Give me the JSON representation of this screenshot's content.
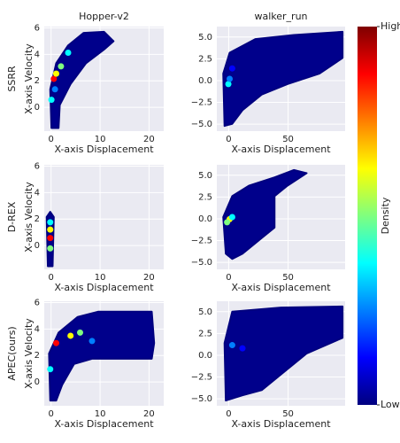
{
  "chart_data": [
    {
      "type": "hexbin",
      "title": "Hopper-v2",
      "row_label": "SSRR",
      "xlabel": "X-axis Displacement",
      "ylabel": "X-axis Velocity",
      "xlim": [
        -1.4,
        23
      ],
      "ylim": [
        -1.8,
        6.1
      ],
      "xticks": [
        0,
        10,
        20
      ],
      "yticks": [
        0,
        2,
        4,
        6
      ]
    },
    {
      "type": "hexbin",
      "title": "walker_run",
      "xlabel": "X-axis Displacement",
      "xlim": [
        -10,
        98
      ],
      "ylim": [
        -5.8,
        6.2
      ],
      "xticks": [
        0,
        50
      ],
      "yticks": [
        {
          "value": -5,
          "label": "−5.0"
        },
        {
          "value": -2.5,
          "label": "−2.5"
        },
        {
          "value": 0,
          "label": "0.0"
        },
        {
          "value": 2.5,
          "label": "2.5"
        },
        {
          "value": 5,
          "label": "5.0"
        }
      ]
    },
    {
      "type": "hexbin",
      "row_label": "D-REX",
      "xlabel": "X-axis Displacement",
      "ylabel": "X-axis Velocity",
      "xlim": [
        -1.4,
        23
      ],
      "ylim": [
        -1.8,
        6.1
      ],
      "xticks": [
        0,
        10,
        20
      ],
      "yticks": [
        0,
        2,
        4,
        6
      ]
    },
    {
      "type": "hexbin",
      "xlabel": "X-axis Displacement",
      "xlim": [
        -10,
        98
      ],
      "ylim": [
        -5.8,
        6.2
      ],
      "xticks": [
        0,
        50
      ],
      "yticks": [
        {
          "value": -5,
          "label": "−5.0"
        },
        {
          "value": -2.5,
          "label": "−2.5"
        },
        {
          "value": 0,
          "label": "0.0"
        },
        {
          "value": 2.5,
          "label": "2.5"
        },
        {
          "value": 5,
          "label": "5.0"
        }
      ]
    },
    {
      "type": "hexbin",
      "row_label": "APEC(ours)",
      "xlabel": "X-axis Displacement",
      "ylabel": "X-axis Velocity",
      "xlim": [
        -1.4,
        23
      ],
      "ylim": [
        -1.8,
        6.1
      ],
      "xticks": [
        0,
        10,
        20
      ],
      "yticks": [
        0,
        2,
        4,
        6
      ]
    },
    {
      "type": "hexbin",
      "xlabel": "X-axis Displacement",
      "xlim": [
        -10,
        98
      ],
      "ylim": [
        -5.8,
        6.2
      ],
      "xticks": [
        0,
        50
      ],
      "yticks": [
        {
          "value": -5,
          "label": "−5.0"
        },
        {
          "value": -2.5,
          "label": "−2.5"
        },
        {
          "value": 0,
          "label": "0.0"
        },
        {
          "value": 2.5,
          "label": "2.5"
        },
        {
          "value": 5,
          "label": "5.0"
        }
      ]
    }
  ],
  "colorbar": {
    "label": "Density",
    "high": "High",
    "low": "Low",
    "colors": [
      "#00007f",
      "#0000ff",
      "#007fff",
      "#00ffff",
      "#7fff7f",
      "#ffff00",
      "#ff7f00",
      "#ff0000",
      "#7f0000"
    ]
  }
}
